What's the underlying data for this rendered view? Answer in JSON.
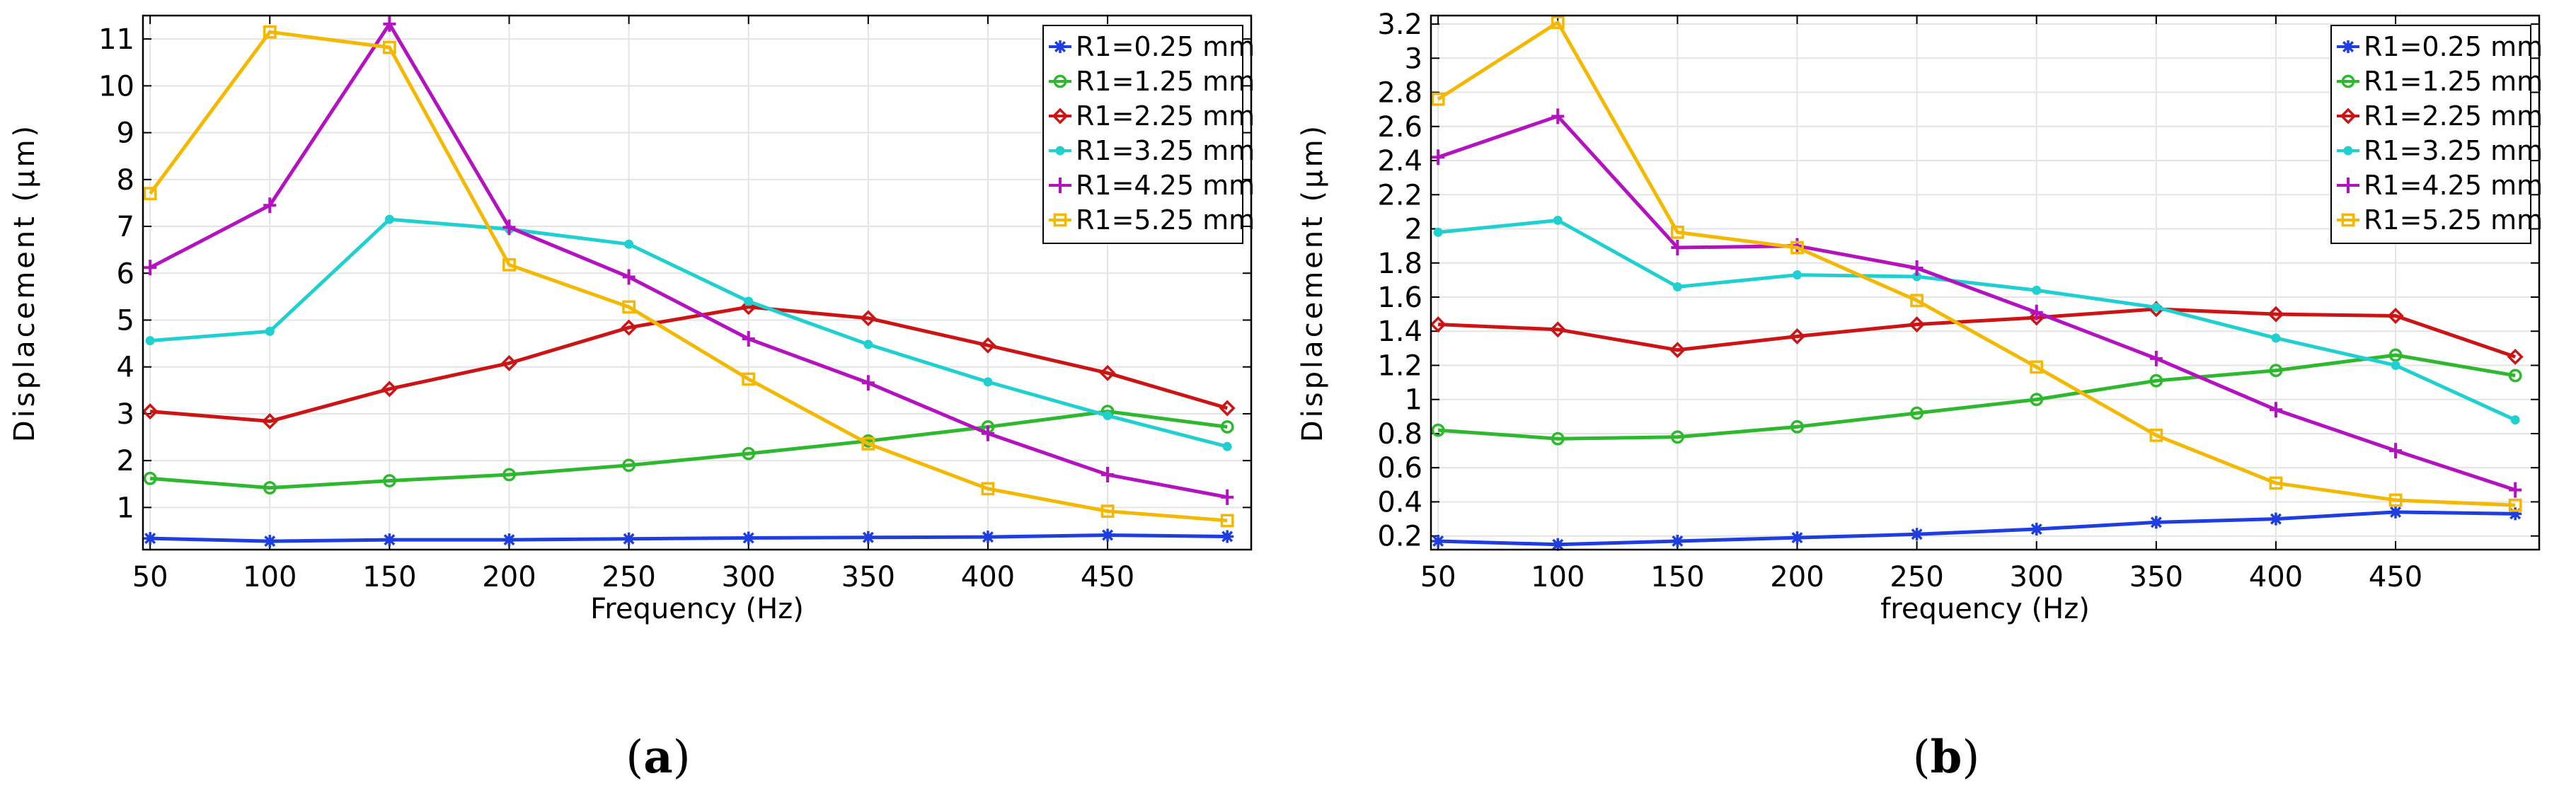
{
  "colors": {
    "R1=0.25 mm": "#1f3ee0",
    "R1=1.25 mm": "#2eb82e",
    "R1=2.25 mm": "#cc1414",
    "R1=3.25 mm": "#20d0d0",
    "R1=4.25 mm": "#b412c0",
    "R1=5.25 mm": "#f5b800"
  },
  "chart_data": [
    {
      "id": "a",
      "type": "line",
      "caption": "a",
      "xlabel": "Frequency (Hz)",
      "ylabel": "Displacement (µm)",
      "x": [
        50,
        100,
        150,
        200,
        250,
        300,
        350,
        400,
        450,
        500
      ],
      "xlim": [
        47,
        510
      ],
      "ylim": [
        0.1,
        11.5
      ],
      "xticks": [
        50,
        100,
        150,
        200,
        250,
        300,
        350,
        400,
        450
      ],
      "yticks": [
        1,
        2,
        3,
        4,
        5,
        6,
        7,
        8,
        9,
        10,
        11
      ],
      "legend_position": "top-right",
      "grid": true,
      "series": [
        {
          "name": "R1=0.25 mm",
          "marker": "star",
          "values": [
            0.34,
            0.28,
            0.31,
            0.31,
            0.33,
            0.35,
            0.36,
            0.37,
            0.41,
            0.38
          ]
        },
        {
          "name": "R1=1.25 mm",
          "marker": "circle",
          "values": [
            1.62,
            1.42,
            1.57,
            1.7,
            1.9,
            2.15,
            2.42,
            2.72,
            3.05,
            2.72
          ]
        },
        {
          "name": "R1=2.25 mm",
          "marker": "diamond",
          "values": [
            3.05,
            2.84,
            3.53,
            4.08,
            4.84,
            5.28,
            5.04,
            4.46,
            3.87,
            3.12
          ]
        },
        {
          "name": "R1=3.25 mm",
          "marker": "point",
          "values": [
            4.56,
            4.76,
            7.15,
            6.94,
            6.62,
            5.4,
            4.48,
            3.68,
            2.96,
            2.3
          ]
        },
        {
          "name": "R1=4.25 mm",
          "marker": "plus",
          "values": [
            6.12,
            7.45,
            11.32,
            6.98,
            5.92,
            4.6,
            3.66,
            2.58,
            1.7,
            1.22
          ]
        },
        {
          "name": "R1=5.25 mm",
          "marker": "square",
          "values": [
            7.7,
            11.15,
            10.82,
            6.18,
            5.28,
            3.74,
            2.36,
            1.4,
            0.92,
            0.72
          ]
        }
      ]
    },
    {
      "id": "b",
      "type": "line",
      "caption": "b",
      "xlabel": "frequency (Hz)",
      "ylabel": "Displacement (µm)",
      "x": [
        50,
        100,
        150,
        200,
        250,
        300,
        350,
        400,
        450,
        500
      ],
      "xlim": [
        47,
        510
      ],
      "ylim": [
        0.12,
        3.25
      ],
      "xticks": [
        50,
        100,
        150,
        200,
        250,
        300,
        350,
        400,
        450
      ],
      "yticks": [
        0.2,
        0.4,
        0.6,
        0.8,
        1,
        1.2,
        1.4,
        1.6,
        1.8,
        2,
        2.2,
        2.4,
        2.6,
        2.8,
        3,
        3.2
      ],
      "legend_position": "top-right",
      "grid": true,
      "series": [
        {
          "name": "R1=0.25 mm",
          "marker": "star",
          "values": [
            0.17,
            0.15,
            0.17,
            0.19,
            0.21,
            0.24,
            0.28,
            0.3,
            0.34,
            0.33
          ]
        },
        {
          "name": "R1=1.25 mm",
          "marker": "circle",
          "values": [
            0.82,
            0.77,
            0.78,
            0.84,
            0.92,
            1.0,
            1.11,
            1.17,
            1.26,
            1.14
          ]
        },
        {
          "name": "R1=2.25 mm",
          "marker": "diamond",
          "values": [
            1.44,
            1.41,
            1.29,
            1.37,
            1.44,
            1.48,
            1.53,
            1.5,
            1.49,
            1.25
          ]
        },
        {
          "name": "R1=3.25 mm",
          "marker": "point",
          "values": [
            1.98,
            2.05,
            1.66,
            1.73,
            1.72,
            1.64,
            1.54,
            1.36,
            1.2,
            0.88
          ]
        },
        {
          "name": "R1=4.25 mm",
          "marker": "plus",
          "values": [
            2.42,
            2.66,
            1.89,
            1.9,
            1.77,
            1.51,
            1.24,
            0.94,
            0.7,
            0.47
          ]
        },
        {
          "name": "R1=5.25 mm",
          "marker": "square",
          "values": [
            2.76,
            3.21,
            1.98,
            1.89,
            1.58,
            1.19,
            0.79,
            0.51,
            0.41,
            0.38
          ]
        }
      ]
    }
  ]
}
